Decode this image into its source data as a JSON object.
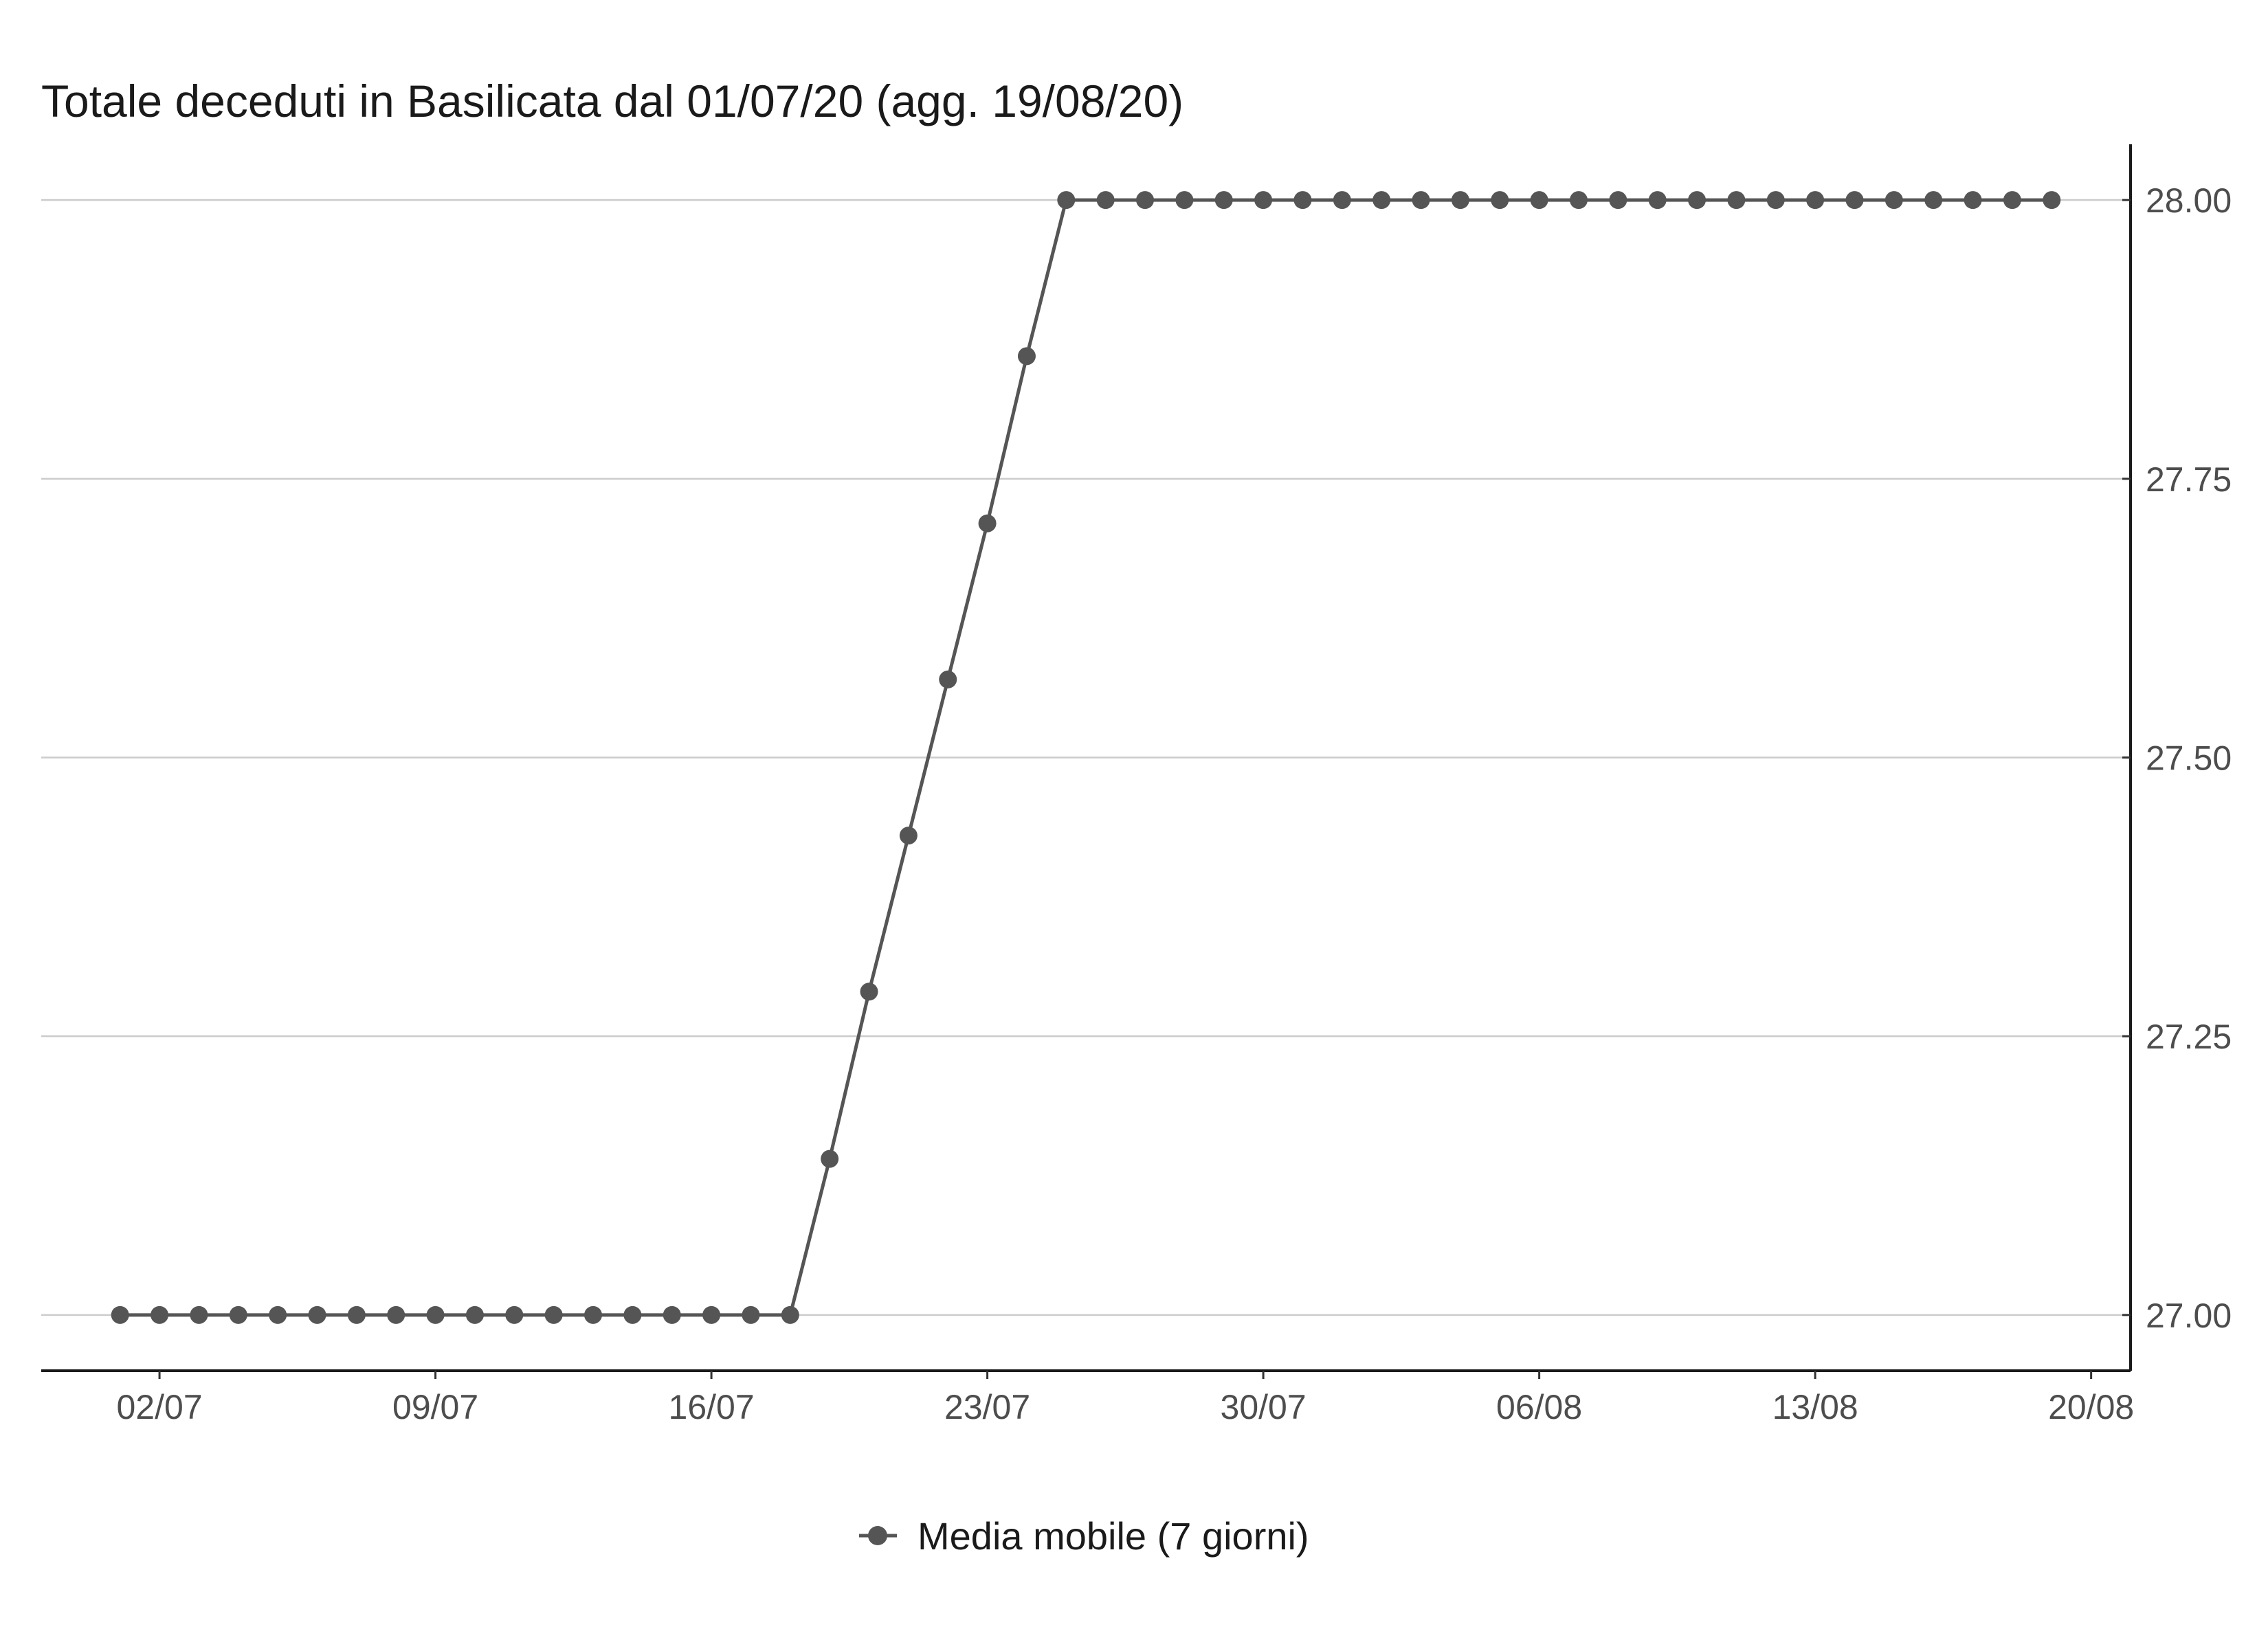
{
  "chart_data": {
    "type": "line",
    "title": "Totale deceduti in Basilicata dal 01/07/20 (agg. 19/08/20)",
    "xlabel": "",
    "ylabel": "",
    "x_tick_labels": [
      "02/07",
      "09/07",
      "16/07",
      "23/07",
      "30/07",
      "06/08",
      "13/08",
      "20/08"
    ],
    "x_tick_values": [
      "2020-07-02",
      "2020-07-09",
      "2020-07-16",
      "2020-07-23",
      "2020-07-30",
      "2020-08-06",
      "2020-08-13",
      "2020-08-20"
    ],
    "y_tick_labels": [
      "27.00",
      "27.25",
      "27.50",
      "27.75",
      "28.00"
    ],
    "y_tick_values": [
      27.0,
      27.25,
      27.5,
      27.75,
      28.0
    ],
    "xlim": [
      "2020-06-29",
      "2020-08-21"
    ],
    "ylim": [
      26.95,
      28.05
    ],
    "grid": "horizontal",
    "y_axis_position": "right",
    "legend_position": "bottom",
    "line_color": "#555555",
    "series": [
      {
        "name": "Media mobile (7 giorni)",
        "x": [
          "2020-07-01",
          "2020-07-02",
          "2020-07-03",
          "2020-07-04",
          "2020-07-05",
          "2020-07-06",
          "2020-07-07",
          "2020-07-08",
          "2020-07-09",
          "2020-07-10",
          "2020-07-11",
          "2020-07-12",
          "2020-07-13",
          "2020-07-14",
          "2020-07-15",
          "2020-07-16",
          "2020-07-17",
          "2020-07-18",
          "2020-07-19",
          "2020-07-20",
          "2020-07-21",
          "2020-07-22",
          "2020-07-23",
          "2020-07-24",
          "2020-07-25",
          "2020-07-26",
          "2020-07-27",
          "2020-07-28",
          "2020-07-29",
          "2020-07-30",
          "2020-07-31",
          "2020-08-01",
          "2020-08-02",
          "2020-08-03",
          "2020-08-04",
          "2020-08-05",
          "2020-08-06",
          "2020-08-07",
          "2020-08-08",
          "2020-08-09",
          "2020-08-10",
          "2020-08-11",
          "2020-08-12",
          "2020-08-13",
          "2020-08-14",
          "2020-08-15",
          "2020-08-16",
          "2020-08-17",
          "2020-08-18",
          "2020-08-19"
        ],
        "values": [
          27,
          27,
          27,
          27,
          27,
          27,
          27,
          27,
          27,
          27,
          27,
          27,
          27,
          27,
          27,
          27,
          27,
          27,
          27.14,
          27.29,
          27.43,
          27.57,
          27.71,
          27.86,
          28,
          28,
          28,
          28,
          28,
          28,
          28,
          28,
          28,
          28,
          28,
          28,
          28,
          28,
          28,
          28,
          28,
          28,
          28,
          28,
          28,
          28,
          28,
          28,
          28,
          28
        ]
      }
    ]
  }
}
